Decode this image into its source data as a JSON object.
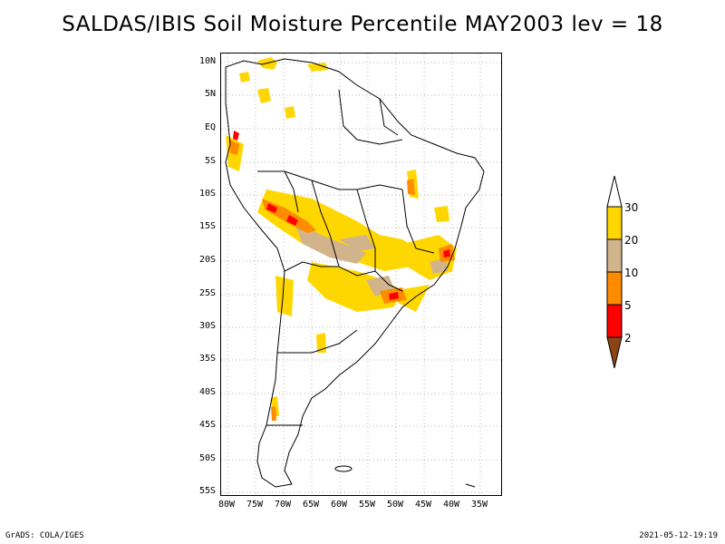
{
  "title": "SALDAS/IBIS Soil Moisture Percentile MAY2003 lev = 18",
  "lat_labels": [
    "10N",
    "5N",
    "EQ",
    "5S",
    "10S",
    "15S",
    "20S",
    "25S",
    "30S",
    "35S",
    "40S",
    "45S",
    "50S",
    "55S"
  ],
  "lon_labels": [
    "80W",
    "75W",
    "70W",
    "65W",
    "60W",
    "55W",
    "50W",
    "45W",
    "40W",
    "35W"
  ],
  "legend": {
    "labels": [
      "30",
      "20",
      "10",
      "5",
      "2"
    ],
    "colors": {
      "above_30": "#ffffff",
      "20_30": "#ffd700",
      "10_20": "#d2b48c",
      "5_10": "#ff8c00",
      "2_5": "#ff0000",
      "below_2": "#8b4513"
    }
  },
  "footer": {
    "left": "GrADS: COLA/IGES",
    "right": "2021-05-12-19:19"
  }
}
